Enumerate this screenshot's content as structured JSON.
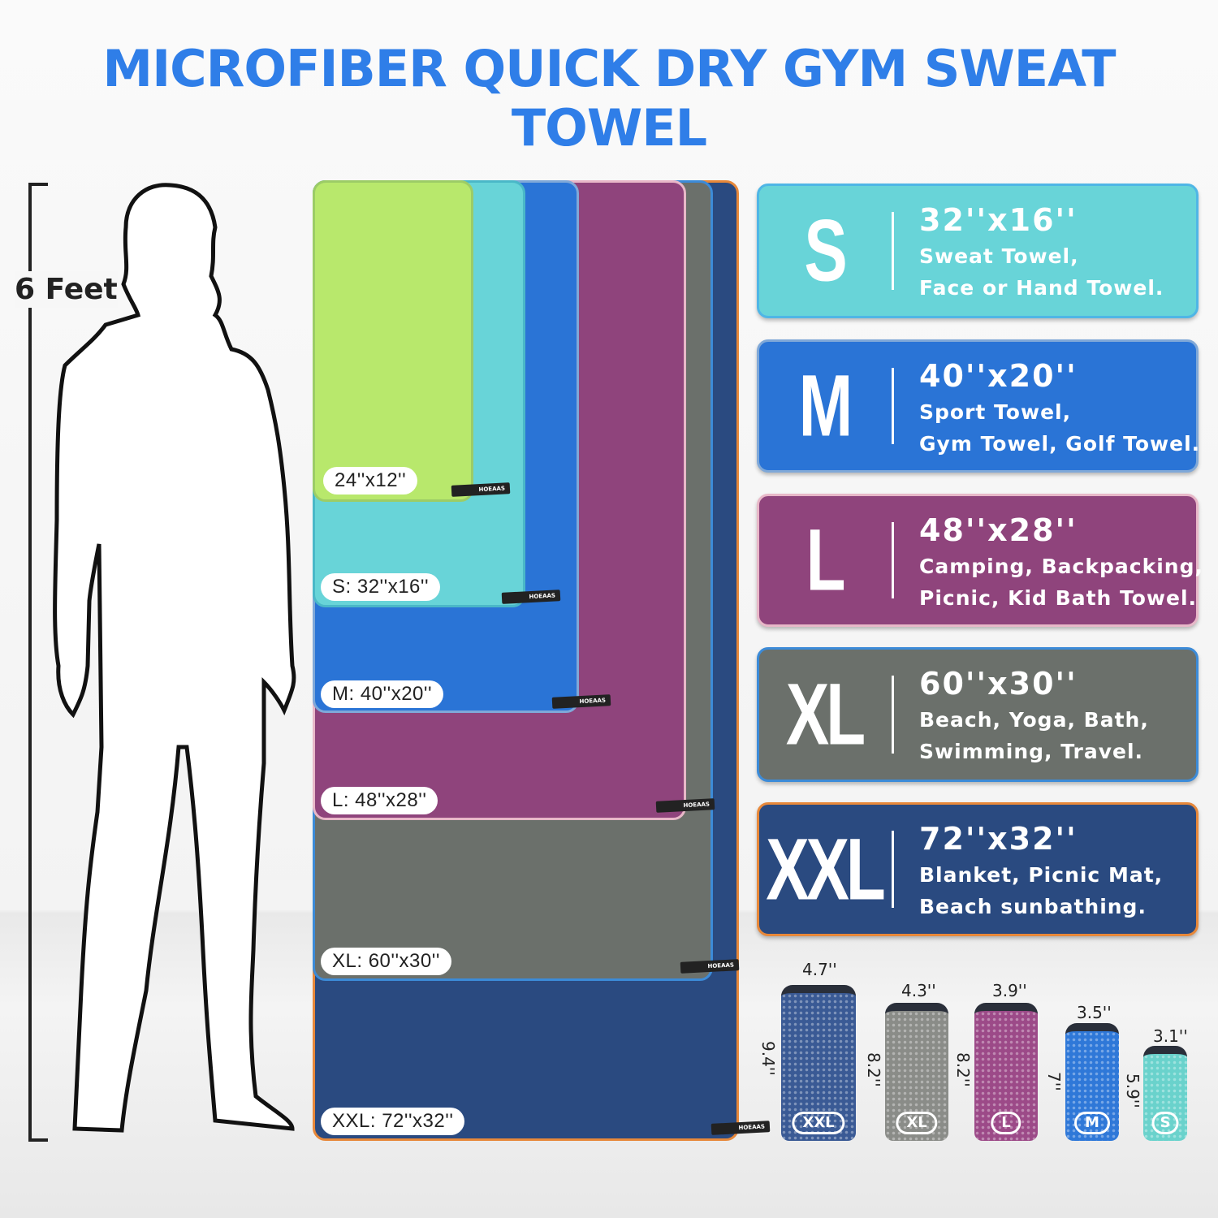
{
  "title": "MICROFIBER QUICK DRY GYM SWEAT TOWEL",
  "height_label": "6 Feet",
  "towel_brand_tag": "HOEAAS",
  "towels": [
    {
      "label": "24''x12''",
      "color": "#b8e86c"
    },
    {
      "label": "S: 32''x16''",
      "color": "#68d4d8"
    },
    {
      "label": "M: 40''x20''",
      "color": "#2a74d6"
    },
    {
      "label": "L: 48''x28''",
      "color": "#8f447c"
    },
    {
      "label": "XL: 60''x30''",
      "color": "#6b706b"
    },
    {
      "label": "XXL: 72''x32''",
      "color": "#2a4a80"
    }
  ],
  "cards": [
    {
      "size": "S",
      "dims": "32''x16''",
      "line1": "Sweat Towel,",
      "line2": "Face or Hand Towel.",
      "color": "#68d4d8"
    },
    {
      "size": "M",
      "dims": "40''x20''",
      "line1": "Sport Towel,",
      "line2": "Gym Towel, Golf Towel.",
      "color": "#2a74d6"
    },
    {
      "size": "L",
      "dims": "48''x28''",
      "line1": "Camping, Backpacking,",
      "line2": "Picnic, Kid Bath Towel.",
      "color": "#8f447c"
    },
    {
      "size": "XL",
      "dims": "60''x30''",
      "line1": "Beach, Yoga, Bath,",
      "line2": "Swimming, Travel.",
      "color": "#6b706b"
    },
    {
      "size": "XXL",
      "dims": "72''x32''",
      "line1": "Blanket, Picnic Mat,",
      "line2": "Beach sunbathing.",
      "color": "#2a4a80"
    }
  ],
  "pouches": [
    {
      "badge": "XXL",
      "width": "4.7''",
      "height": "9.4''",
      "color": "#3a5a95"
    },
    {
      "badge": "XL",
      "width": "4.3''",
      "height": "8.2''",
      "color": "#8a8c88"
    },
    {
      "badge": "L",
      "width": "3.9''",
      "height": "8.2''",
      "color": "#9c4a88"
    },
    {
      "badge": "M",
      "width": "3.5''",
      "height": "7''",
      "color": "#2f78d8"
    },
    {
      "badge": "S",
      "width": "3.1''",
      "height": "5.9''",
      "color": "#6ad2cc"
    }
  ]
}
